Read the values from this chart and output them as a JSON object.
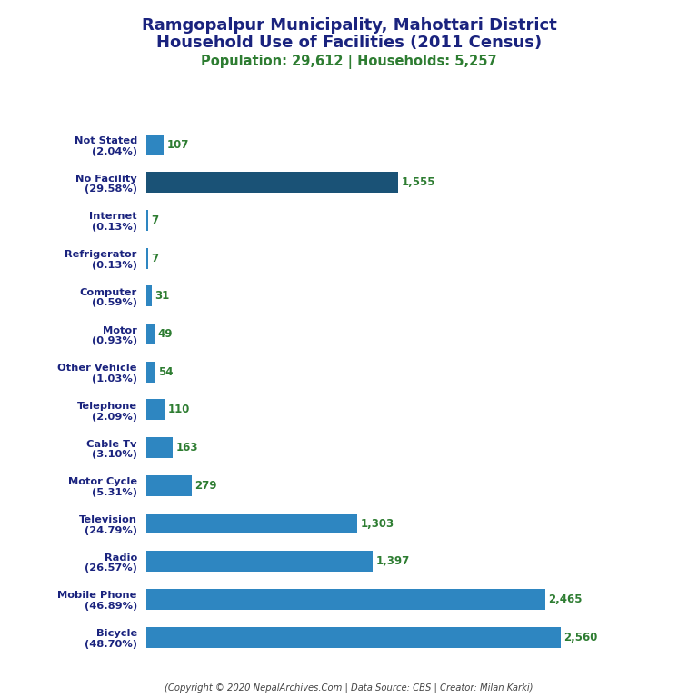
{
  "title_line1": "Ramgopalpur Municipality, Mahottari District",
  "title_line2": "Household Use of Facilities (2011 Census)",
  "subtitle": "Population: 29,612 | Households: 5,257",
  "footer": "(Copyright © 2020 NepalArchives.Com | Data Source: CBS | Creator: Milan Karki)",
  "categories": [
    "Not Stated\n(2.04%)",
    "No Facility\n(29.58%)",
    "Internet\n(0.13%)",
    "Refrigerator\n(0.13%)",
    "Computer\n(0.59%)",
    "Motor\n(0.93%)",
    "Other Vehicle\n(1.03%)",
    "Telephone\n(2.09%)",
    "Cable Tv\n(3.10%)",
    "Motor Cycle\n(5.31%)",
    "Television\n(24.79%)",
    "Radio\n(26.57%)",
    "Mobile Phone\n(46.89%)",
    "Bicycle\n(48.70%)"
  ],
  "values": [
    107,
    1555,
    7,
    7,
    31,
    49,
    54,
    110,
    163,
    279,
    1303,
    1397,
    2465,
    2560
  ],
  "bar_color_light": "#2e86c1",
  "bar_color_dark": "#1a5276",
  "title_color": "#1a237e",
  "subtitle_color": "#2e7d32",
  "footer_color": "#444444",
  "value_color": "#2e7d32",
  "label_color": "#1a237e",
  "background_color": "#ffffff"
}
